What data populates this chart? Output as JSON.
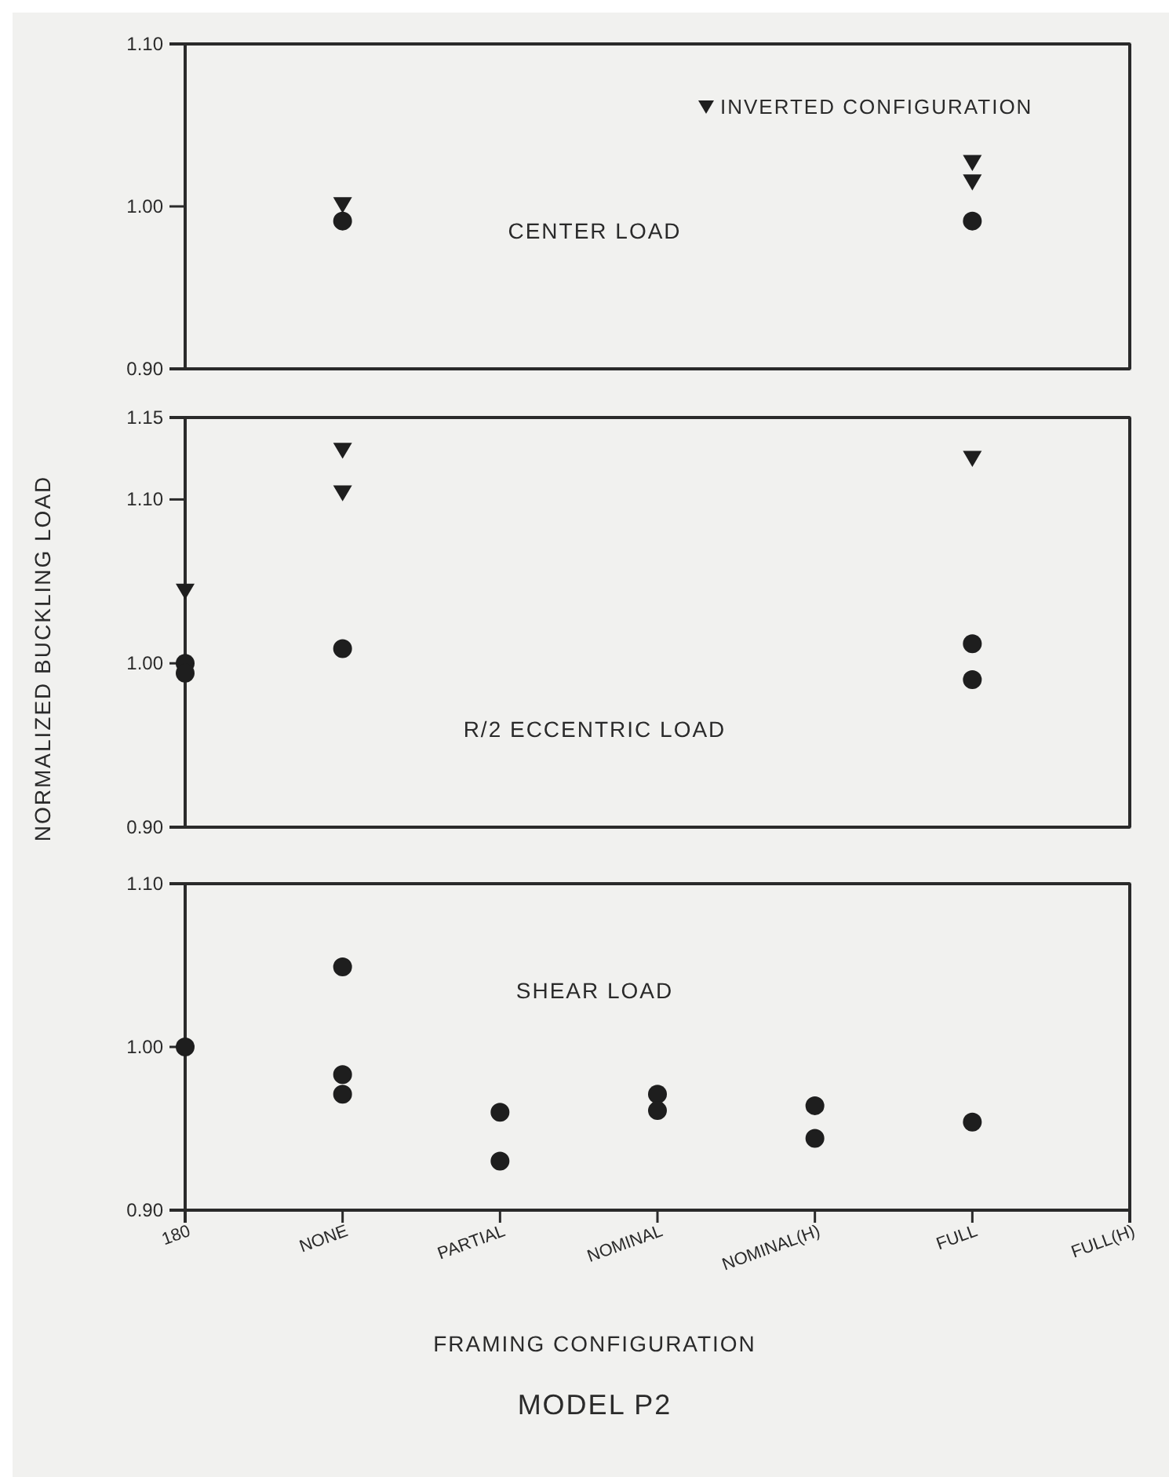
{
  "chart_data": [
    {
      "type": "scatter",
      "categories": [
        "180",
        "NONE",
        "PARTIAL",
        "NOMINAL",
        "NOMINAL(H)",
        "FULL",
        "FULL(H)"
      ],
      "ylim": [
        0.9,
        1.1
      ],
      "yticks": [
        {
          "value": 0.9,
          "label": "0.90"
        },
        {
          "value": 1.0,
          "label": "1.00"
        },
        {
          "value": 1.1,
          "label": "1.10"
        }
      ],
      "tick_labels": "y",
      "legend": "top right",
      "annotations": [
        "CENTER LOAD"
      ],
      "series": [
        {
          "type": "scatter",
          "marker": "circle",
          "color": "#1e1e1e",
          "x": [
            "NONE",
            "FULL"
          ],
          "values": [
            0.991,
            0.991
          ]
        },
        {
          "type": "scatter",
          "marker": "triangle",
          "name": "INVERTED CONFIGURATION",
          "color": "#1e1e1e",
          "x": [
            "NONE",
            "FULL",
            "FULL"
          ],
          "values": [
            1.001,
            1.027,
            1.015
          ]
        }
      ]
    },
    {
      "type": "scatter",
      "categories": [
        "180",
        "NONE",
        "PARTIAL",
        "NOMINAL",
        "NOMINAL(H)",
        "FULL",
        "FULL(H)"
      ],
      "ylim": [
        0.9,
        1.15
      ],
      "yticks": [
        {
          "value": 0.9,
          "label": "0.90"
        },
        {
          "value": 1.0,
          "label": "1.00"
        },
        {
          "value": 1.1,
          "label": "1.10"
        },
        {
          "value": 1.15,
          "label": "1.15"
        }
      ],
      "tick_labels": "y",
      "ylabel": "NORMALIZED BUCKLING LOAD",
      "annotations": [
        "R/2 ECCENTRIC LOAD"
      ],
      "series": [
        {
          "type": "scatter",
          "marker": "circle",
          "color": "#1e1e1e",
          "x": [
            "180",
            "180",
            "NONE",
            "FULL",
            "FULL"
          ],
          "values": [
            1.0,
            0.994,
            1.009,
            1.012,
            0.99
          ]
        },
        {
          "type": "scatter",
          "marker": "triangle",
          "color": "#1e1e1e",
          "x": [
            "180",
            "NONE",
            "NONE",
            "FULL"
          ],
          "values": [
            1.044,
            1.13,
            1.104,
            1.125
          ]
        }
      ]
    },
    {
      "type": "scatter",
      "categories": [
        "180",
        "NONE",
        "PARTIAL",
        "NOMINAL",
        "NOMINAL(H)",
        "FULL",
        "FULL(H)"
      ],
      "ylim": [
        0.9,
        1.1
      ],
      "yticks": [
        {
          "value": 0.9,
          "label": "0.90"
        },
        {
          "value": 1.0,
          "label": "1.00"
        },
        {
          "value": 1.1,
          "label": "1.10"
        }
      ],
      "xlabel": "FRAMING CONFIGURATION",
      "annotations": [
        "SHEAR LOAD",
        "MODEL P2"
      ],
      "series": [
        {
          "type": "scatter",
          "marker": "circle",
          "color": "#1e1e1e",
          "x": [
            "180",
            "NONE",
            "NONE",
            "NONE",
            "PARTIAL",
            "PARTIAL",
            "NOMINAL",
            "NOMINAL",
            "NOMINAL(H)",
            "NOMINAL(H)",
            "FULL"
          ],
          "values": [
            1.0,
            1.049,
            0.983,
            0.971,
            0.96,
            0.93,
            0.971,
            0.961,
            0.964,
            0.944,
            0.954
          ]
        }
      ]
    }
  ]
}
